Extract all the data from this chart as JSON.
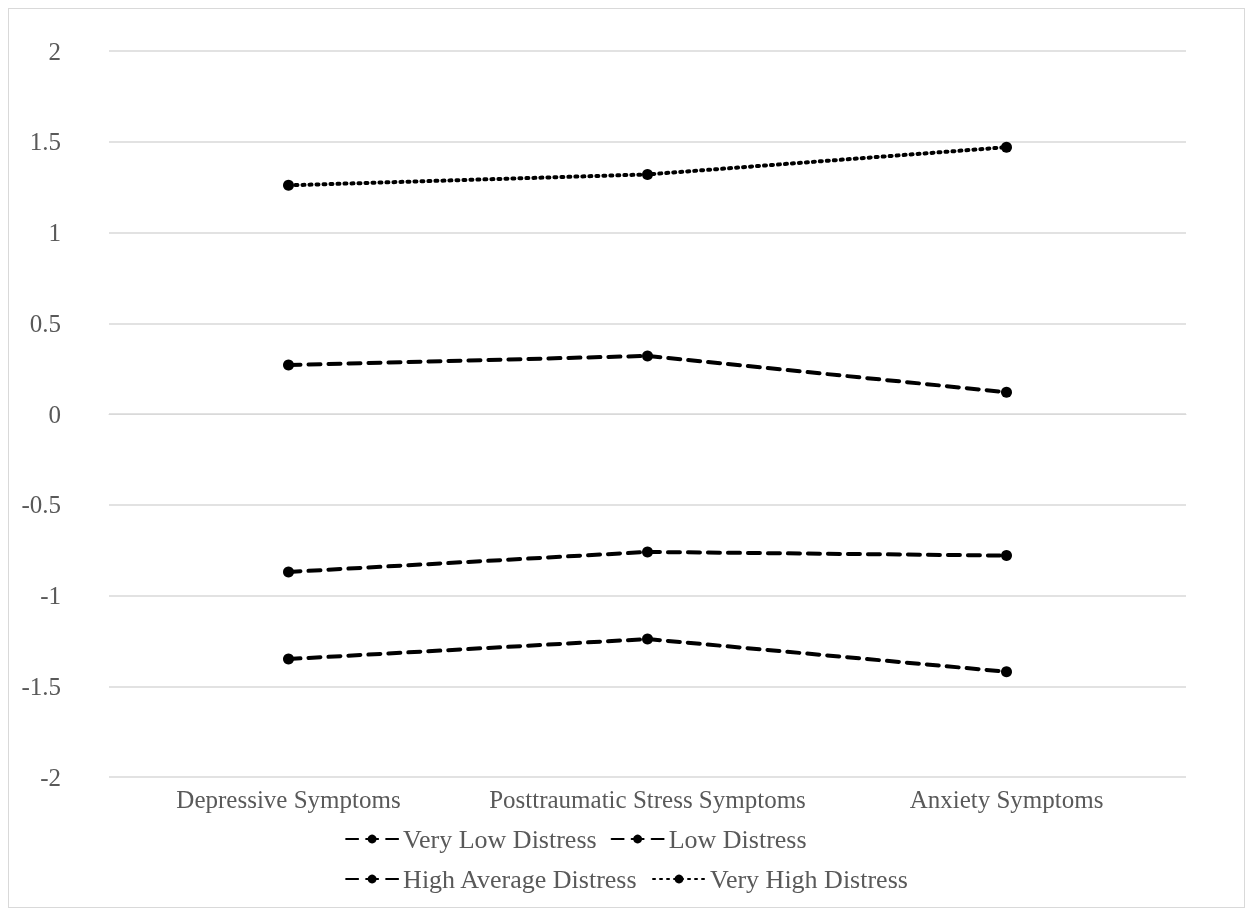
{
  "chart_data": {
    "type": "line",
    "categories": [
      "Depressive Symptoms",
      "Posttraumatic Stress Symptoms",
      "Anxiety Symptoms"
    ],
    "series": [
      {
        "name": "Very Low Distress",
        "color": "#000000",
        "line_style": "dashed",
        "values": [
          -1.35,
          -1.24,
          -1.42
        ]
      },
      {
        "name": "Low Distress",
        "color": "#000000",
        "line_style": "dashed",
        "values": [
          -0.87,
          -0.76,
          -0.78
        ]
      },
      {
        "name": "High Average Distress",
        "color": "#000000",
        "line_style": "dashed",
        "values": [
          0.27,
          0.32,
          0.12
        ]
      },
      {
        "name": "Very High Distress",
        "color": "#000000",
        "line_style": "dotted",
        "values": [
          1.26,
          1.32,
          1.47
        ]
      }
    ],
    "ylim": [
      -2,
      2
    ],
    "yticks": [
      -2,
      -1.5,
      -1,
      -0.5,
      0,
      0.5,
      1,
      1.5,
      2
    ],
    "grid": "y",
    "legend": "bottom",
    "marker": "circle"
  }
}
